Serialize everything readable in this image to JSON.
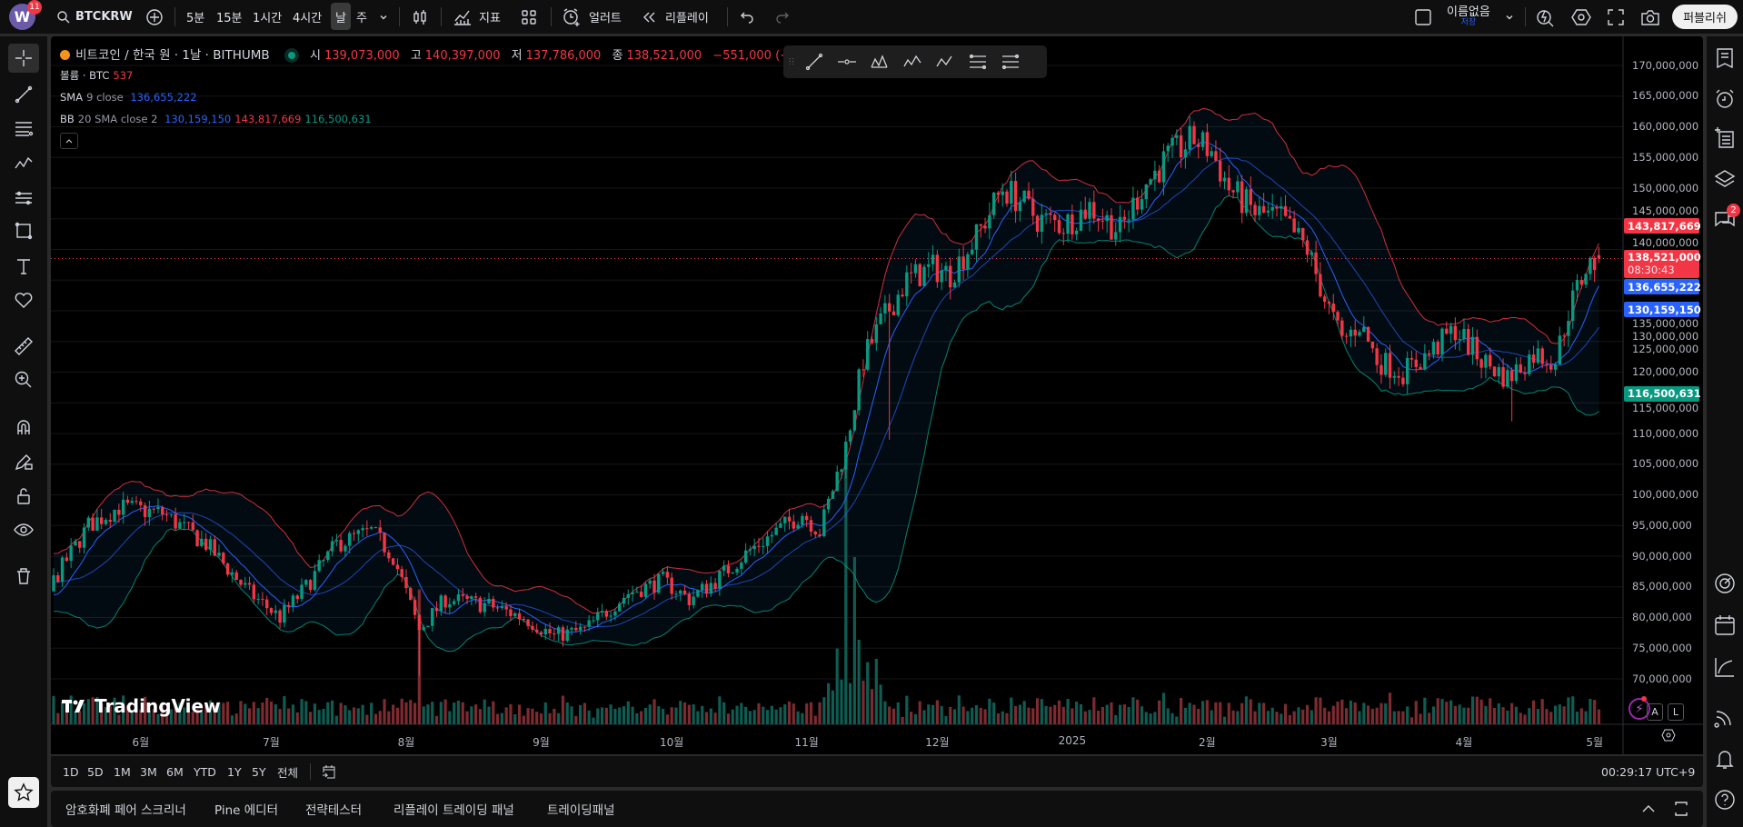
{
  "topbar": {
    "avatar_letter": "W",
    "notification_count": "11",
    "symbol": "BTCKRW",
    "intervals": [
      "5분",
      "15분",
      "1시간",
      "4시간",
      "날",
      "주"
    ],
    "active_interval": "날",
    "indicators_label": "지표",
    "alert_label": "얼러트",
    "replay_label": "리플레이",
    "layout_name": "이름없음",
    "save_label": "저장",
    "publish_label": "퍼블리쉬"
  },
  "legend": {
    "title": "비트코인 / 한국 원 · 1날 · BITHUMB",
    "open_label": "시",
    "open": "139,073,000",
    "high_label": "고",
    "high": "140,397,000",
    "low_label": "저",
    "low": "137,786,000",
    "close_label": "종",
    "close": "138,521,000",
    "change": "−551,000 (−0.40%)",
    "volume_label": "볼륨 · BTC",
    "volume": "537",
    "sma_label": "SMA",
    "sma_params": "9 close",
    "sma_value": "136,655,222",
    "bb_label": "BB",
    "bb_params": "20 SMA close 2",
    "bb_basis": "130,159,150",
    "bb_upper": "143,817,669",
    "bb_lower": "116,500,631"
  },
  "price_axis": {
    "ticks": [
      "170,000,000",
      "165,000,000",
      "160,000,000",
      "155,000,000",
      "150,000,000",
      "145,000,000",
      "140,000,000",
      "135,000,000",
      "130,000,000",
      "125,000,000",
      "120,000,000",
      "115,000,000",
      "110,000,000",
      "105,000,000",
      "100,000,000",
      "95,000,000",
      "90,000,000",
      "85,000,000",
      "80,000,000",
      "75,000,000",
      "70,000,000"
    ],
    "tick_values": [
      170,
      165,
      160,
      155,
      150,
      145,
      140,
      135,
      130,
      125,
      120,
      115,
      110,
      105,
      100,
      95,
      90,
      85,
      80,
      75,
      70
    ],
    "labels": {
      "bb_upper": "143,817,669",
      "last_price": "138,521,000",
      "countdown": "08:30:43",
      "sma": "136,655,222",
      "bb_basis": "130,159,150",
      "bb_lower": "116,500,631"
    }
  },
  "time_axis": {
    "labels": [
      "6월",
      "7월",
      "8월",
      "9월",
      "10월",
      "11월",
      "12월",
      "2025",
      "2월",
      "3월",
      "4월",
      "5월"
    ]
  },
  "range_bar": {
    "ranges": [
      "1D",
      "5D",
      "1M",
      "3M",
      "6M",
      "YTD",
      "1Y",
      "5Y",
      "전체"
    ],
    "clock": "00:29:17 UTC+9"
  },
  "bottom_tabs": [
    "암호화폐 페어 스크리너",
    "Pine 에디터",
    "전략테스터",
    "리플레이 트레이딩 패널",
    "트레이딩패널"
  ],
  "watermark": "TradingView",
  "scale_buttons": [
    "A",
    "L"
  ],
  "right_sidebar": {
    "chat_badge": "2"
  },
  "colors": {
    "up": "#089981",
    "down": "#f23645",
    "sma": "#2962ff",
    "bb_upper": "#f23645",
    "bb_lower": "#089981",
    "bb_basis": "#2962ff"
  },
  "chart_data": {
    "type": "candlestick",
    "unit": "million KRW",
    "days": 356,
    "anchors": [
      [
        0,
        86
      ],
      [
        8,
        95
      ],
      [
        15,
        98
      ],
      [
        25,
        97
      ],
      [
        35,
        92
      ],
      [
        45,
        84
      ],
      [
        52,
        80
      ],
      [
        58,
        85
      ],
      [
        65,
        92
      ],
      [
        73,
        94
      ],
      [
        78,
        90
      ],
      [
        84,
        78
      ],
      [
        90,
        83
      ],
      [
        100,
        82
      ],
      [
        108,
        80
      ],
      [
        115,
        77
      ],
      [
        122,
        78
      ],
      [
        132,
        84
      ],
      [
        140,
        86
      ],
      [
        146,
        83
      ],
      [
        152,
        86
      ],
      [
        160,
        91
      ],
      [
        168,
        95
      ],
      [
        172,
        97
      ],
      [
        176,
        94
      ],
      [
        182,
        108
      ],
      [
        186,
        122
      ],
      [
        190,
        128
      ],
      [
        196,
        135
      ],
      [
        202,
        137
      ],
      [
        206,
        136
      ],
      [
        212,
        142
      ],
      [
        218,
        150
      ],
      [
        222,
        148
      ],
      [
        226,
        145
      ],
      [
        232,
        144
      ],
      [
        238,
        147
      ],
      [
        245,
        143
      ],
      [
        250,
        150
      ],
      [
        256,
        155
      ],
      [
        262,
        158
      ],
      [
        266,
        156
      ],
      [
        270,
        150
      ],
      [
        276,
        146
      ],
      [
        282,
        145
      ],
      [
        288,
        140
      ],
      [
        292,
        132
      ],
      [
        296,
        125
      ],
      [
        300,
        128
      ],
      [
        304,
        122
      ],
      [
        310,
        120
      ],
      [
        316,
        123
      ],
      [
        322,
        127
      ],
      [
        328,
        122
      ],
      [
        334,
        119
      ],
      [
        340,
        123
      ],
      [
        345,
        122
      ],
      [
        348,
        130
      ],
      [
        352,
        137
      ],
      [
        355,
        138.521
      ]
    ],
    "last_candle": {
      "open": 139.073,
      "high": 140.397,
      "low": 137.786,
      "close": 138.521
    },
    "ylim": [
      67,
      173
    ]
  }
}
